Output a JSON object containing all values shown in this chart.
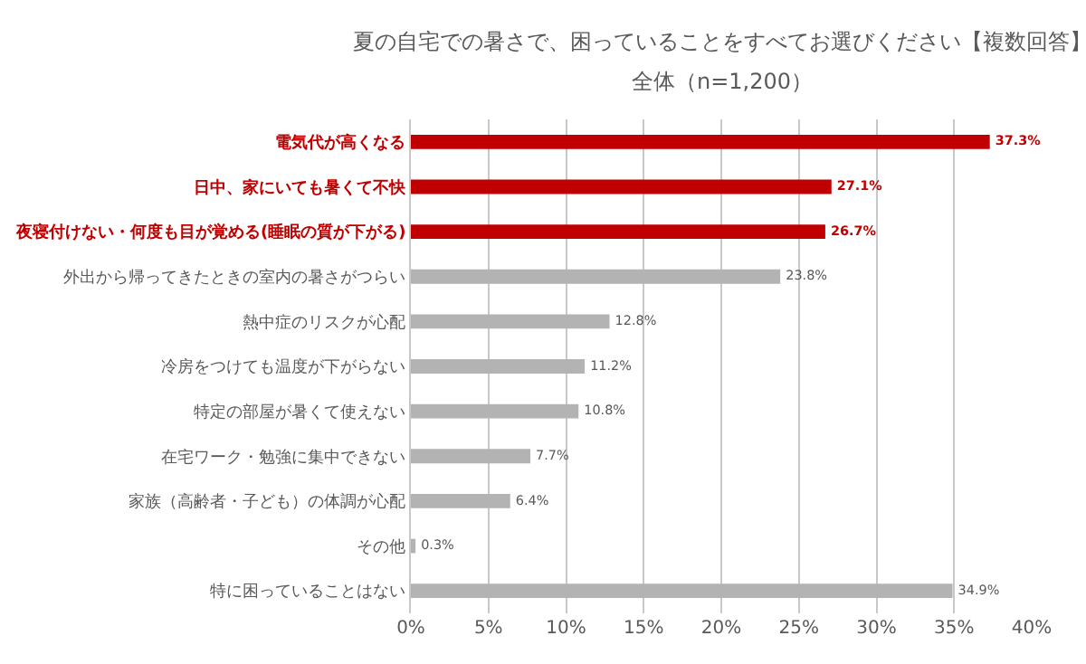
{
  "chart_data": {
    "type": "bar",
    "orientation": "horizontal",
    "title": "夏の自宅での暑さで、困っていることをすべてお選びください【複数回答】",
    "subtitle": "全体（n=1,200）",
    "categories": [
      "電気代が高くなる",
      "日中、家にいても暑くて不快",
      "夜寝付けない・何度も目が覚める(睡眠の質が下がる)",
      "外出から帰ってきたときの室内の暑さがつらい",
      "熱中症のリスクが心配",
      "冷房をつけても温度が下がらない",
      "特定の部屋が暑くて使えない",
      "在宅ワーク・勉強に集中できない",
      "家族（高齢者・子ども）の体調が心配",
      "その他",
      "特に困っていることはない"
    ],
    "values": [
      37.3,
      27.1,
      26.7,
      23.8,
      12.8,
      11.2,
      10.8,
      7.7,
      6.4,
      0.3,
      34.9
    ],
    "colors": [
      "#c00000",
      "#c00000",
      "#c00000",
      "#b3b3b3",
      "#b3b3b3",
      "#b3b3b3",
      "#b3b3b3",
      "#b3b3b3",
      "#b3b3b3",
      "#b3b3b3",
      "#b3b3b3"
    ],
    "value_labels": [
      "37.3%",
      "27.1%",
      "26.7%",
      "23.8%",
      "12.8%",
      "11.2%",
      "10.8%",
      "7.7%",
      "6.4%",
      "0.3%",
      "34.9%"
    ],
    "xlim": [
      0,
      40
    ],
    "xticks": [
      {
        "value": 0,
        "label": "0%"
      },
      {
        "value": 5,
        "label": "5%"
      },
      {
        "value": 10,
        "label": "10%"
      },
      {
        "value": 15,
        "label": "15%"
      },
      {
        "value": 20,
        "label": "20%"
      },
      {
        "value": 25,
        "label": "25%"
      },
      {
        "value": 30,
        "label": "30%"
      },
      {
        "value": 35,
        "label": "35%"
      },
      {
        "value": 40,
        "label": "40%"
      }
    ],
    "grid": "x"
  }
}
